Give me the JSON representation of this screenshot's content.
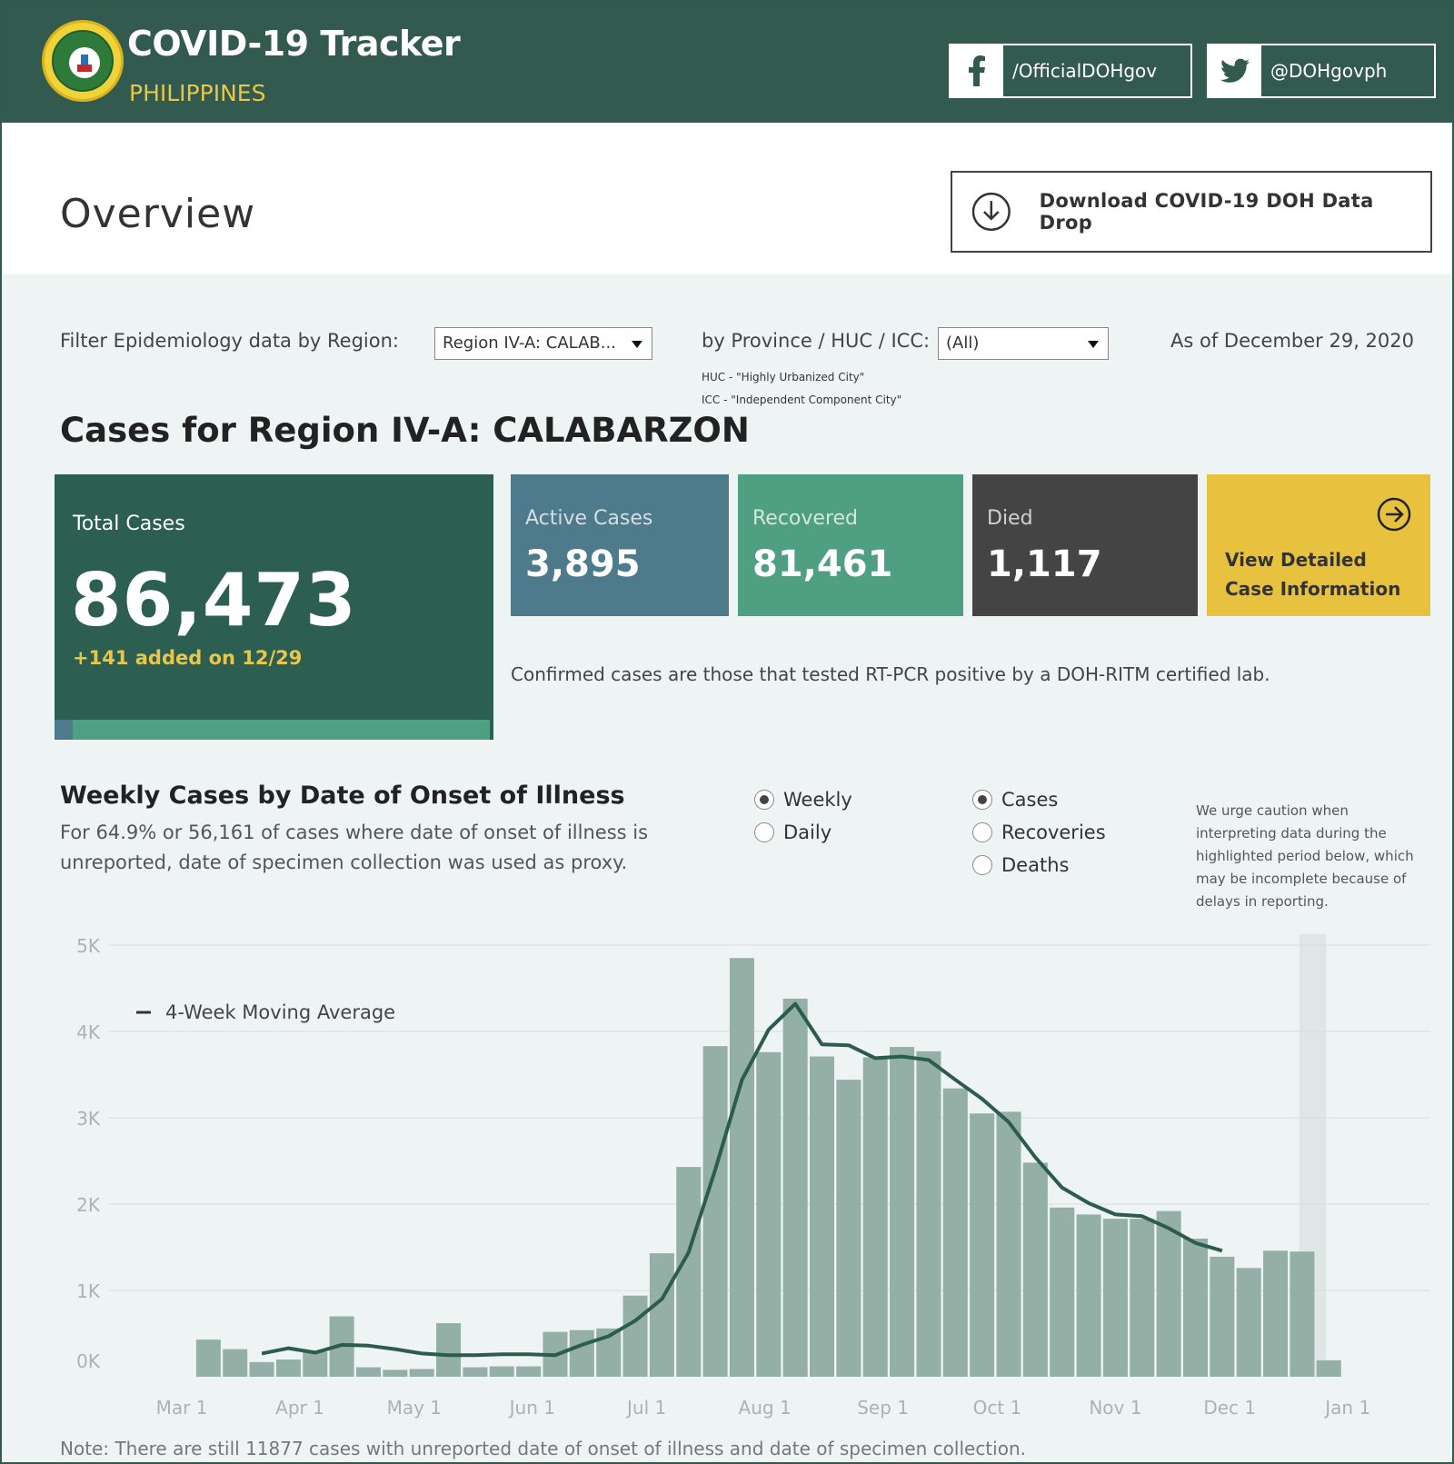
{
  "header": {
    "title": "COVID-19 Tracker",
    "subtitle": "PHILIPPINES",
    "facebook_label": "/OfficialDOHgov",
    "twitter_label": "@DOHgovph"
  },
  "overview": {
    "title": "Overview",
    "download_label": "Download COVID-19 DOH Data Drop"
  },
  "filters": {
    "region_label": "Filter Epidemiology data by Region:",
    "region_value": "Region IV-A: CALAB...",
    "province_label": "by Province / HUC / ICC:",
    "province_value": "(All)",
    "huc_note": "HUC - \"Highly Urbanized City\"",
    "icc_note": "ICC - \"Independent Component City\"",
    "as_of": "As of December 29, 2020"
  },
  "region_title": "Cases for Region IV-A: CALABARZON",
  "cards": {
    "total_label": "Total Cases",
    "total_value": "86,473",
    "total_added": "+141 added on 12/29",
    "active_label": "Active Cases",
    "active_value": "3,895",
    "recovered_label": "Recovered",
    "recovered_value": "81,461",
    "died_label": "Died",
    "died_value": "1,117",
    "detail_line1": "View Detailed",
    "detail_line2": "Case Information"
  },
  "confirmed_note": "Confirmed cases are those that tested RT-PCR positive by a DOH-RITM certified lab.",
  "chart_section": {
    "title": "Weekly Cases by Date of Onset of Illness",
    "subtitle_line1": "For 64.9% or 56,161 of cases where date of onset of illness is",
    "subtitle_line2": "unreported, date of specimen collection was used as proxy.",
    "radio_weekly": "Weekly",
    "radio_daily": "Daily",
    "radio_cases": "Cases",
    "radio_recoveries": "Recoveries",
    "radio_deaths": "Deaths",
    "caution_1": "We urge caution when",
    "caution_2": "interpreting data during the",
    "caution_3": "highlighted period below, which",
    "caution_4": "may be incomplete because of",
    "caution_5": "delays in reporting.",
    "footnote": "Note: There are still 11877 cases with unreported date of onset of illness and date of specimen collection."
  },
  "colors": {
    "header_bg": "#335a4e",
    "accent_gold": "#e8c64a",
    "bar": "#93afa6",
    "line": "#2b5c4c",
    "active": "#4e7b8c",
    "recovered": "#4f9f82",
    "died": "#444444",
    "detail": "#e8c23f"
  },
  "chart_data": {
    "type": "bar",
    "title": "Weekly Cases by Date of Onset of Illness",
    "xlabel": "",
    "ylabel": "",
    "ylim": [
      0,
      5000
    ],
    "y_ticks": [
      "0K",
      "1K",
      "2K",
      "3K",
      "4K",
      "5K"
    ],
    "x_ticks": [
      "Mar 1",
      "Apr 1",
      "May 1",
      "Jun 1",
      "Jul 1",
      "Aug 1",
      "Sep 1",
      "Oct 1",
      "Nov 1",
      "Dec 1",
      "Jan 1"
    ],
    "x_tick_dates": [
      "2020-03-01",
      "2020-04-01",
      "2020-05-01",
      "2020-06-01",
      "2020-07-01",
      "2020-08-01",
      "2020-09-01",
      "2020-10-01",
      "2020-11-01",
      "2020-12-01",
      "2021-01-01"
    ],
    "weeks_start": "2020-03-08",
    "week_dates": [
      "2020-03-08",
      "2020-03-15",
      "2020-03-22",
      "2020-03-29",
      "2020-04-05",
      "2020-04-12",
      "2020-04-19",
      "2020-04-26",
      "2020-05-03",
      "2020-05-10",
      "2020-05-17",
      "2020-05-24",
      "2020-05-31",
      "2020-06-07",
      "2020-06-14",
      "2020-06-21",
      "2020-06-28",
      "2020-07-05",
      "2020-07-12",
      "2020-07-19",
      "2020-07-26",
      "2020-08-02",
      "2020-08-09",
      "2020-08-16",
      "2020-08-23",
      "2020-08-30",
      "2020-09-06",
      "2020-09-13",
      "2020-09-20",
      "2020-09-27",
      "2020-10-04",
      "2020-10-11",
      "2020-10-18",
      "2020-10-25",
      "2020-11-01",
      "2020-11-08",
      "2020-11-15",
      "2020-11-22",
      "2020-11-29",
      "2020-12-06",
      "2020-12-13",
      "2020-12-20",
      "2020-12-27"
    ],
    "series": [
      {
        "name": "Weekly Cases",
        "type": "bar",
        "values": [
          430,
          320,
          170,
          200,
          290,
          700,
          110,
          80,
          90,
          620,
          110,
          120,
          120,
          520,
          540,
          560,
          940,
          1430,
          2430,
          3830,
          4850,
          3760,
          4380,
          3710,
          3440,
          3700,
          3820,
          3770,
          3340,
          3050,
          3070,
          2480,
          1960,
          1880,
          1830,
          1830,
          1920,
          1600,
          1390,
          1260,
          1460,
          1450,
          190
        ]
      },
      {
        "name": "4-Week Moving Average",
        "type": "line",
        "values": [
          null,
          null,
          270,
          330,
          280,
          370,
          360,
          320,
          270,
          250,
          250,
          260,
          260,
          250,
          370,
          470,
          650,
          900,
          1440,
          2400,
          3440,
          4020,
          4320,
          3850,
          3840,
          3690,
          3710,
          3670,
          3440,
          3220,
          2950,
          2540,
          2190,
          2010,
          1880,
          1860,
          1720,
          1550,
          1460,
          null,
          null,
          null,
          null
        ]
      }
    ],
    "highlight_weeks": [
      "2020-12-20",
      "2020-12-27"
    ],
    "legend": "top-left",
    "grid": true
  }
}
